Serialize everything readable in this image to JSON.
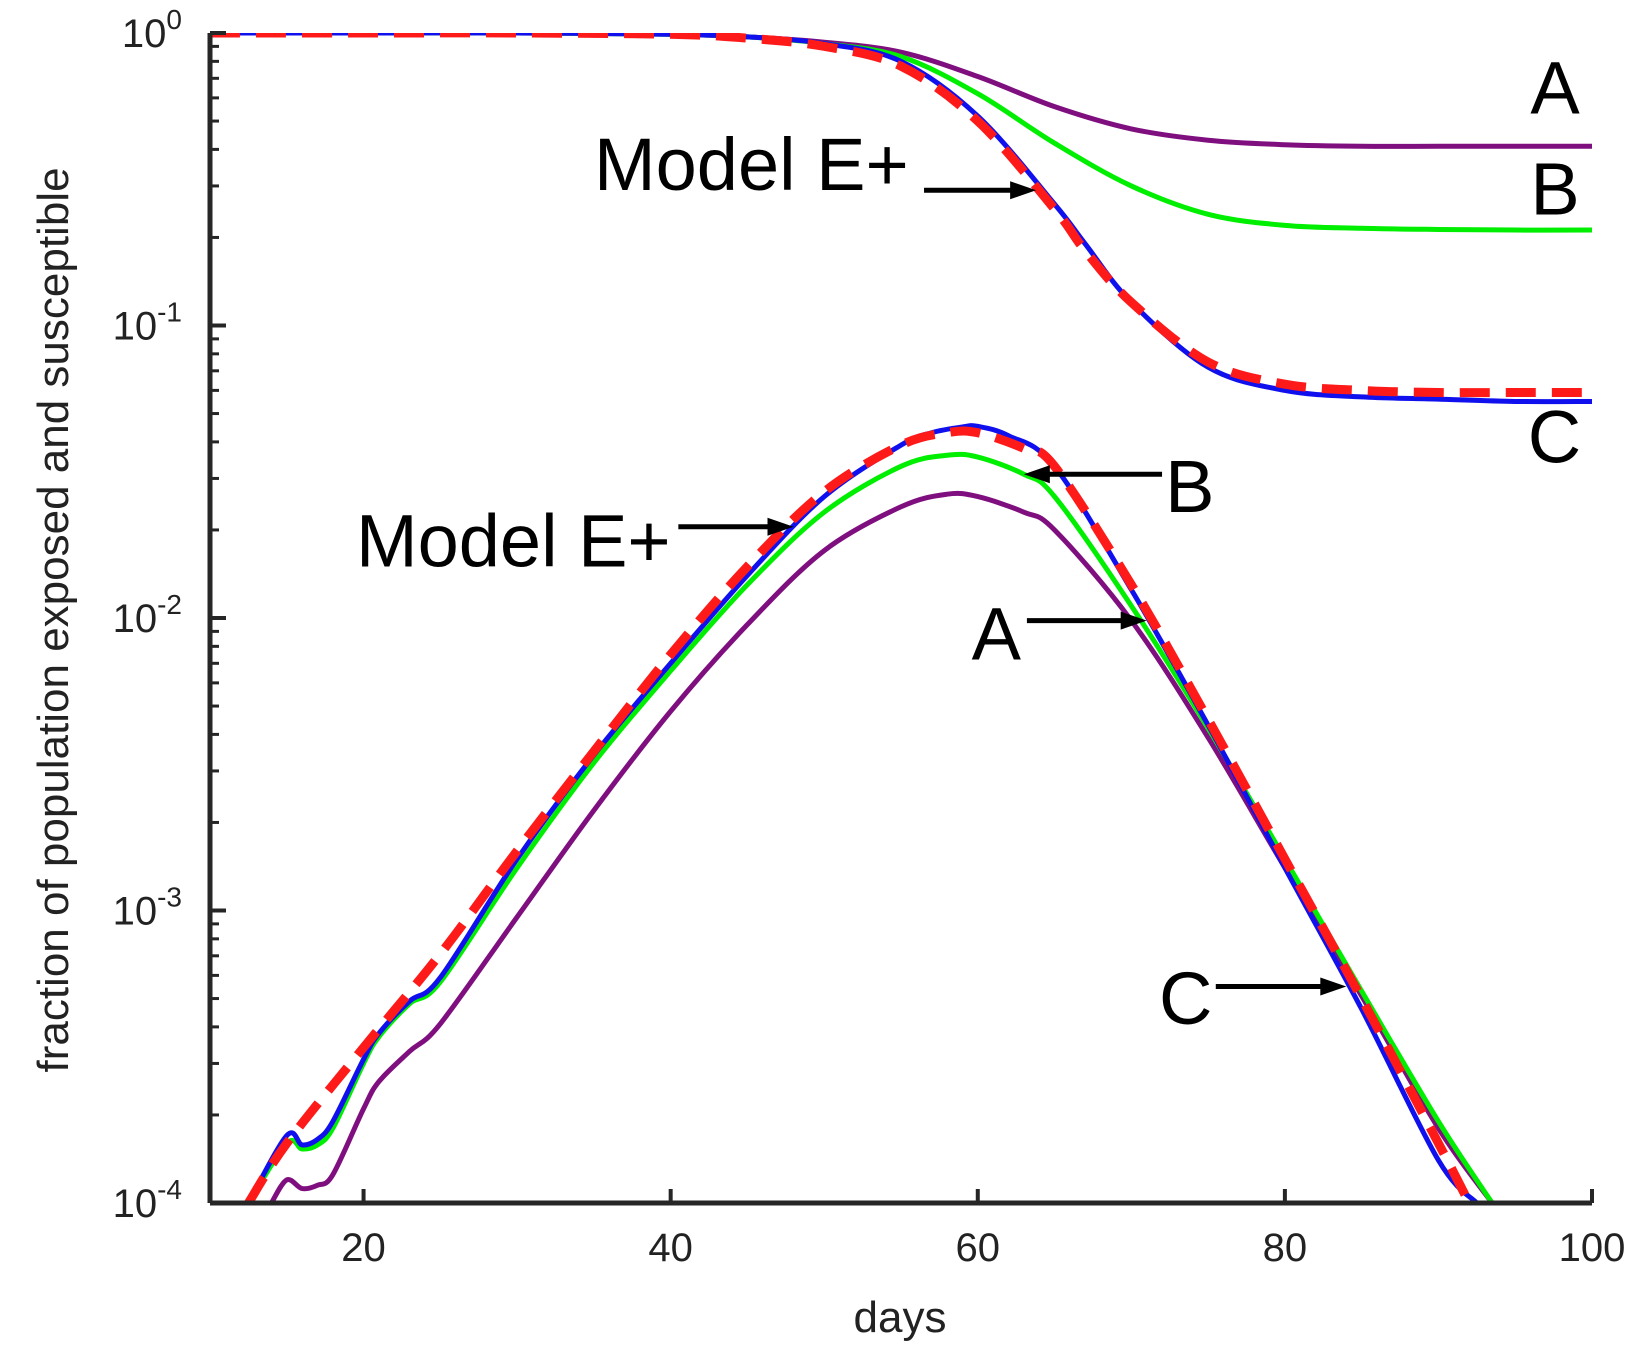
{
  "chart_data": {
    "type": "line",
    "xlabel": "days",
    "ylabel": "fraction of population exposed and susceptible",
    "xlim": [
      10,
      100
    ],
    "ylim": [
      0.0001,
      1
    ],
    "yscale": "log",
    "grid": false,
    "colors": {
      "A": "#7f0f7f",
      "B": "#00ee00",
      "C": "#1010ee",
      "model": "#ff1a1a"
    },
    "xticks": [
      {
        "value": 20,
        "label": "20"
      },
      {
        "value": 40,
        "label": "40"
      },
      {
        "value": 60,
        "label": "60"
      },
      {
        "value": 80,
        "label": "80"
      },
      {
        "value": 100,
        "label": "100"
      }
    ],
    "yticks": [
      {
        "value": 1,
        "base": "10",
        "exp": "0"
      },
      {
        "value": 0.1,
        "base": "10",
        "exp": "-1"
      },
      {
        "value": 0.01,
        "base": "10",
        "exp": "-2"
      },
      {
        "value": 0.001,
        "base": "10",
        "exp": "-3"
      },
      {
        "value": 0.0001,
        "base": "10",
        "exp": "-4"
      }
    ],
    "series": [
      {
        "id": "sus_A",
        "color": "#7f0f7f",
        "dash": false,
        "x": [
          10,
          20,
          30,
          40,
          45,
          50,
          55,
          60,
          65,
          70,
          75,
          80,
          85,
          90,
          95,
          100
        ],
        "y": [
          1,
          1,
          1,
          0.99,
          0.97,
          0.93,
          0.86,
          0.71,
          0.56,
          0.47,
          0.43,
          0.415,
          0.41,
          0.41,
          0.41,
          0.41
        ]
      },
      {
        "id": "sus_B",
        "color": "#00ee00",
        "dash": false,
        "x": [
          10,
          20,
          30,
          40,
          45,
          50,
          55,
          60,
          65,
          70,
          75,
          80,
          85,
          90,
          95,
          100
        ],
        "y": [
          1,
          1,
          1,
          0.99,
          0.97,
          0.92,
          0.83,
          0.62,
          0.42,
          0.3,
          0.24,
          0.22,
          0.215,
          0.213,
          0.212,
          0.212
        ]
      },
      {
        "id": "sus_C",
        "color": "#1010ee",
        "dash": false,
        "x": [
          10,
          20,
          30,
          40,
          45,
          50,
          55,
          60,
          65,
          67,
          70,
          75,
          80,
          85,
          90,
          95,
          100
        ],
        "y": [
          1,
          1,
          1,
          0.99,
          0.97,
          0.92,
          0.8,
          0.52,
          0.26,
          0.19,
          0.12,
          0.072,
          0.06,
          0.057,
          0.056,
          0.055,
          0.055
        ]
      },
      {
        "id": "sus_model",
        "color": "#ff1a1a",
        "dash": true,
        "x": [
          10,
          20,
          30,
          40,
          45,
          50,
          55,
          60,
          65,
          67,
          70,
          75,
          80,
          85,
          90,
          95,
          100
        ],
        "y": [
          1,
          1,
          1,
          0.99,
          0.96,
          0.9,
          0.77,
          0.5,
          0.25,
          0.18,
          0.12,
          0.075,
          0.063,
          0.06,
          0.059,
          0.059,
          0.059
        ]
      },
      {
        "id": "exp_A",
        "color": "#7f0f7f",
        "dash": false,
        "x": [
          14,
          15,
          16,
          17,
          18,
          20,
          21,
          23,
          25,
          30,
          35,
          40,
          45,
          50,
          55,
          58,
          60,
          63,
          65,
          70,
          75,
          80,
          85,
          90,
          93.5
        ],
        "y": [
          0.0001,
          0.00012,
          0.000112,
          0.000115,
          0.000125,
          0.00021,
          0.00026,
          0.00033,
          0.00041,
          0.00095,
          0.0022,
          0.0048,
          0.0095,
          0.017,
          0.024,
          0.0265,
          0.026,
          0.023,
          0.02,
          0.0098,
          0.0039,
          0.0014,
          0.00051,
          0.00018,
          0.0001
        ]
      },
      {
        "id": "exp_B",
        "color": "#00ee00",
        "dash": false,
        "x": [
          12.5,
          15,
          16,
          17,
          18,
          20,
          21,
          23,
          25,
          30,
          35,
          40,
          45,
          50,
          55,
          58,
          60,
          63,
          65,
          70,
          75,
          80,
          85,
          90,
          93.5
        ],
        "y": [
          0.0001,
          0.00016,
          0.000153,
          0.000158,
          0.00018,
          0.0003,
          0.00037,
          0.00048,
          0.00057,
          0.0014,
          0.0032,
          0.0066,
          0.013,
          0.023,
          0.033,
          0.036,
          0.0355,
          0.031,
          0.026,
          0.011,
          0.0042,
          0.0015,
          0.00053,
          0.00019,
          0.0001
        ]
      },
      {
        "id": "exp_C",
        "color": "#1010ee",
        "dash": false,
        "x": [
          12.5,
          15,
          16,
          17,
          18,
          20,
          21,
          23,
          25,
          30,
          35,
          40,
          45,
          50,
          55,
          57,
          59,
          60,
          62,
          65,
          70,
          75,
          80,
          85,
          90,
          92.5
        ],
        "y": [
          0.0001,
          0.00017,
          0.000158,
          0.000165,
          0.00019,
          0.00031,
          0.00038,
          0.00049,
          0.00059,
          0.0015,
          0.0034,
          0.007,
          0.014,
          0.026,
          0.039,
          0.043,
          0.045,
          0.0452,
          0.042,
          0.033,
          0.0125,
          0.0043,
          0.0014,
          0.00046,
          0.00014,
          0.0001
        ]
      },
      {
        "id": "exp_model",
        "color": "#ff1a1a",
        "dash": true,
        "x": [
          12.5,
          15,
          20,
          25,
          30,
          35,
          40,
          45,
          50,
          55,
          58,
          60,
          63,
          65,
          70,
          75,
          80,
          85,
          90,
          92
        ],
        "y": [
          0.0001,
          0.00016,
          0.00034,
          0.00071,
          0.0016,
          0.0035,
          0.0075,
          0.015,
          0.027,
          0.039,
          0.043,
          0.043,
          0.038,
          0.033,
          0.013,
          0.0045,
          0.0015,
          0.0005,
          0.00016,
          0.0001
        ]
      }
    ],
    "annotations": [
      {
        "id": "label-top-A",
        "text": "A",
        "at": [
          99.2,
          0.53
        ],
        "anchor": "end",
        "arrow": false
      },
      {
        "id": "label-top-B",
        "text": "B",
        "at": [
          99.2,
          0.24
        ],
        "anchor": "end",
        "arrow": false
      },
      {
        "id": "label-top-C",
        "text": "C",
        "at": [
          99.3,
          0.034
        ],
        "anchor": "end",
        "arrow": false
      },
      {
        "id": "label-top-model",
        "text": "Model E+",
        "at": [
          55.5,
          0.29
        ],
        "anchor": "end",
        "arrow": true,
        "arrow_from": [
          56.5,
          0.29
        ],
        "arrow_to": [
          63.8,
          0.29
        ]
      },
      {
        "id": "label-bottom-model",
        "text": "Model E+",
        "at": [
          40.0,
          0.015
        ],
        "anchor": "end",
        "arrow": true,
        "arrow_from": [
          40.5,
          0.0205
        ],
        "arrow_to": [
          48.0,
          0.0205
        ]
      },
      {
        "id": "label-bottom-B",
        "text": "B",
        "at": [
          72.2,
          0.023
        ],
        "anchor": "start",
        "arrow": true,
        "arrow_from": [
          72.0,
          0.031
        ],
        "arrow_to": [
          63.0,
          0.031
        ]
      },
      {
        "id": "label-bottom-A",
        "text": "A",
        "at": [
          59.6,
          0.0072
        ],
        "anchor": "start",
        "arrow": true,
        "arrow_from": [
          63.2,
          0.0098
        ],
        "arrow_to": [
          71.0,
          0.0098
        ]
      },
      {
        "id": "label-bottom-C",
        "text": "C",
        "at": [
          71.8,
          0.00041
        ],
        "anchor": "start",
        "arrow": true,
        "arrow_from": [
          75.5,
          0.00055
        ],
        "arrow_to": [
          84.0,
          0.00055
        ]
      }
    ]
  }
}
